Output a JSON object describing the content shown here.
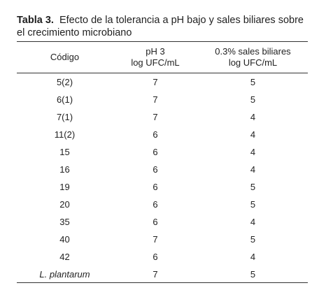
{
  "caption": {
    "label": "Tabla 3.",
    "text": "Efecto de la tolerancia a pH bajo y sales biliares sobre el crecimiento microbiano"
  },
  "columns": [
    {
      "line1": "Código",
      "line2": ""
    },
    {
      "line1": "pH 3",
      "line2": "log UFC/mL"
    },
    {
      "line1": "0.3% sales biliares",
      "line2": "log UFC/mL"
    }
  ],
  "rows": [
    {
      "code": "5(2)",
      "ph3": "7",
      "bile": "5"
    },
    {
      "code": "6(1)",
      "ph3": "7",
      "bile": "5"
    },
    {
      "code": "7(1)",
      "ph3": "7",
      "bile": "4"
    },
    {
      "code": "11(2)",
      "ph3": "6",
      "bile": "4"
    },
    {
      "code": "15",
      "ph3": "6",
      "bile": "4"
    },
    {
      "code": "16",
      "ph3": "6",
      "bile": "4"
    },
    {
      "code": "19",
      "ph3": "6",
      "bile": "5"
    },
    {
      "code": "20",
      "ph3": "6",
      "bile": "5"
    },
    {
      "code": "35",
      "ph3": "6",
      "bile": "4"
    },
    {
      "code": "40",
      "ph3": "7",
      "bile": "5"
    },
    {
      "code": "42",
      "ph3": "6",
      "bile": "4"
    },
    {
      "code": "L. plantarum",
      "ph3": "7",
      "bile": "5"
    }
  ]
}
